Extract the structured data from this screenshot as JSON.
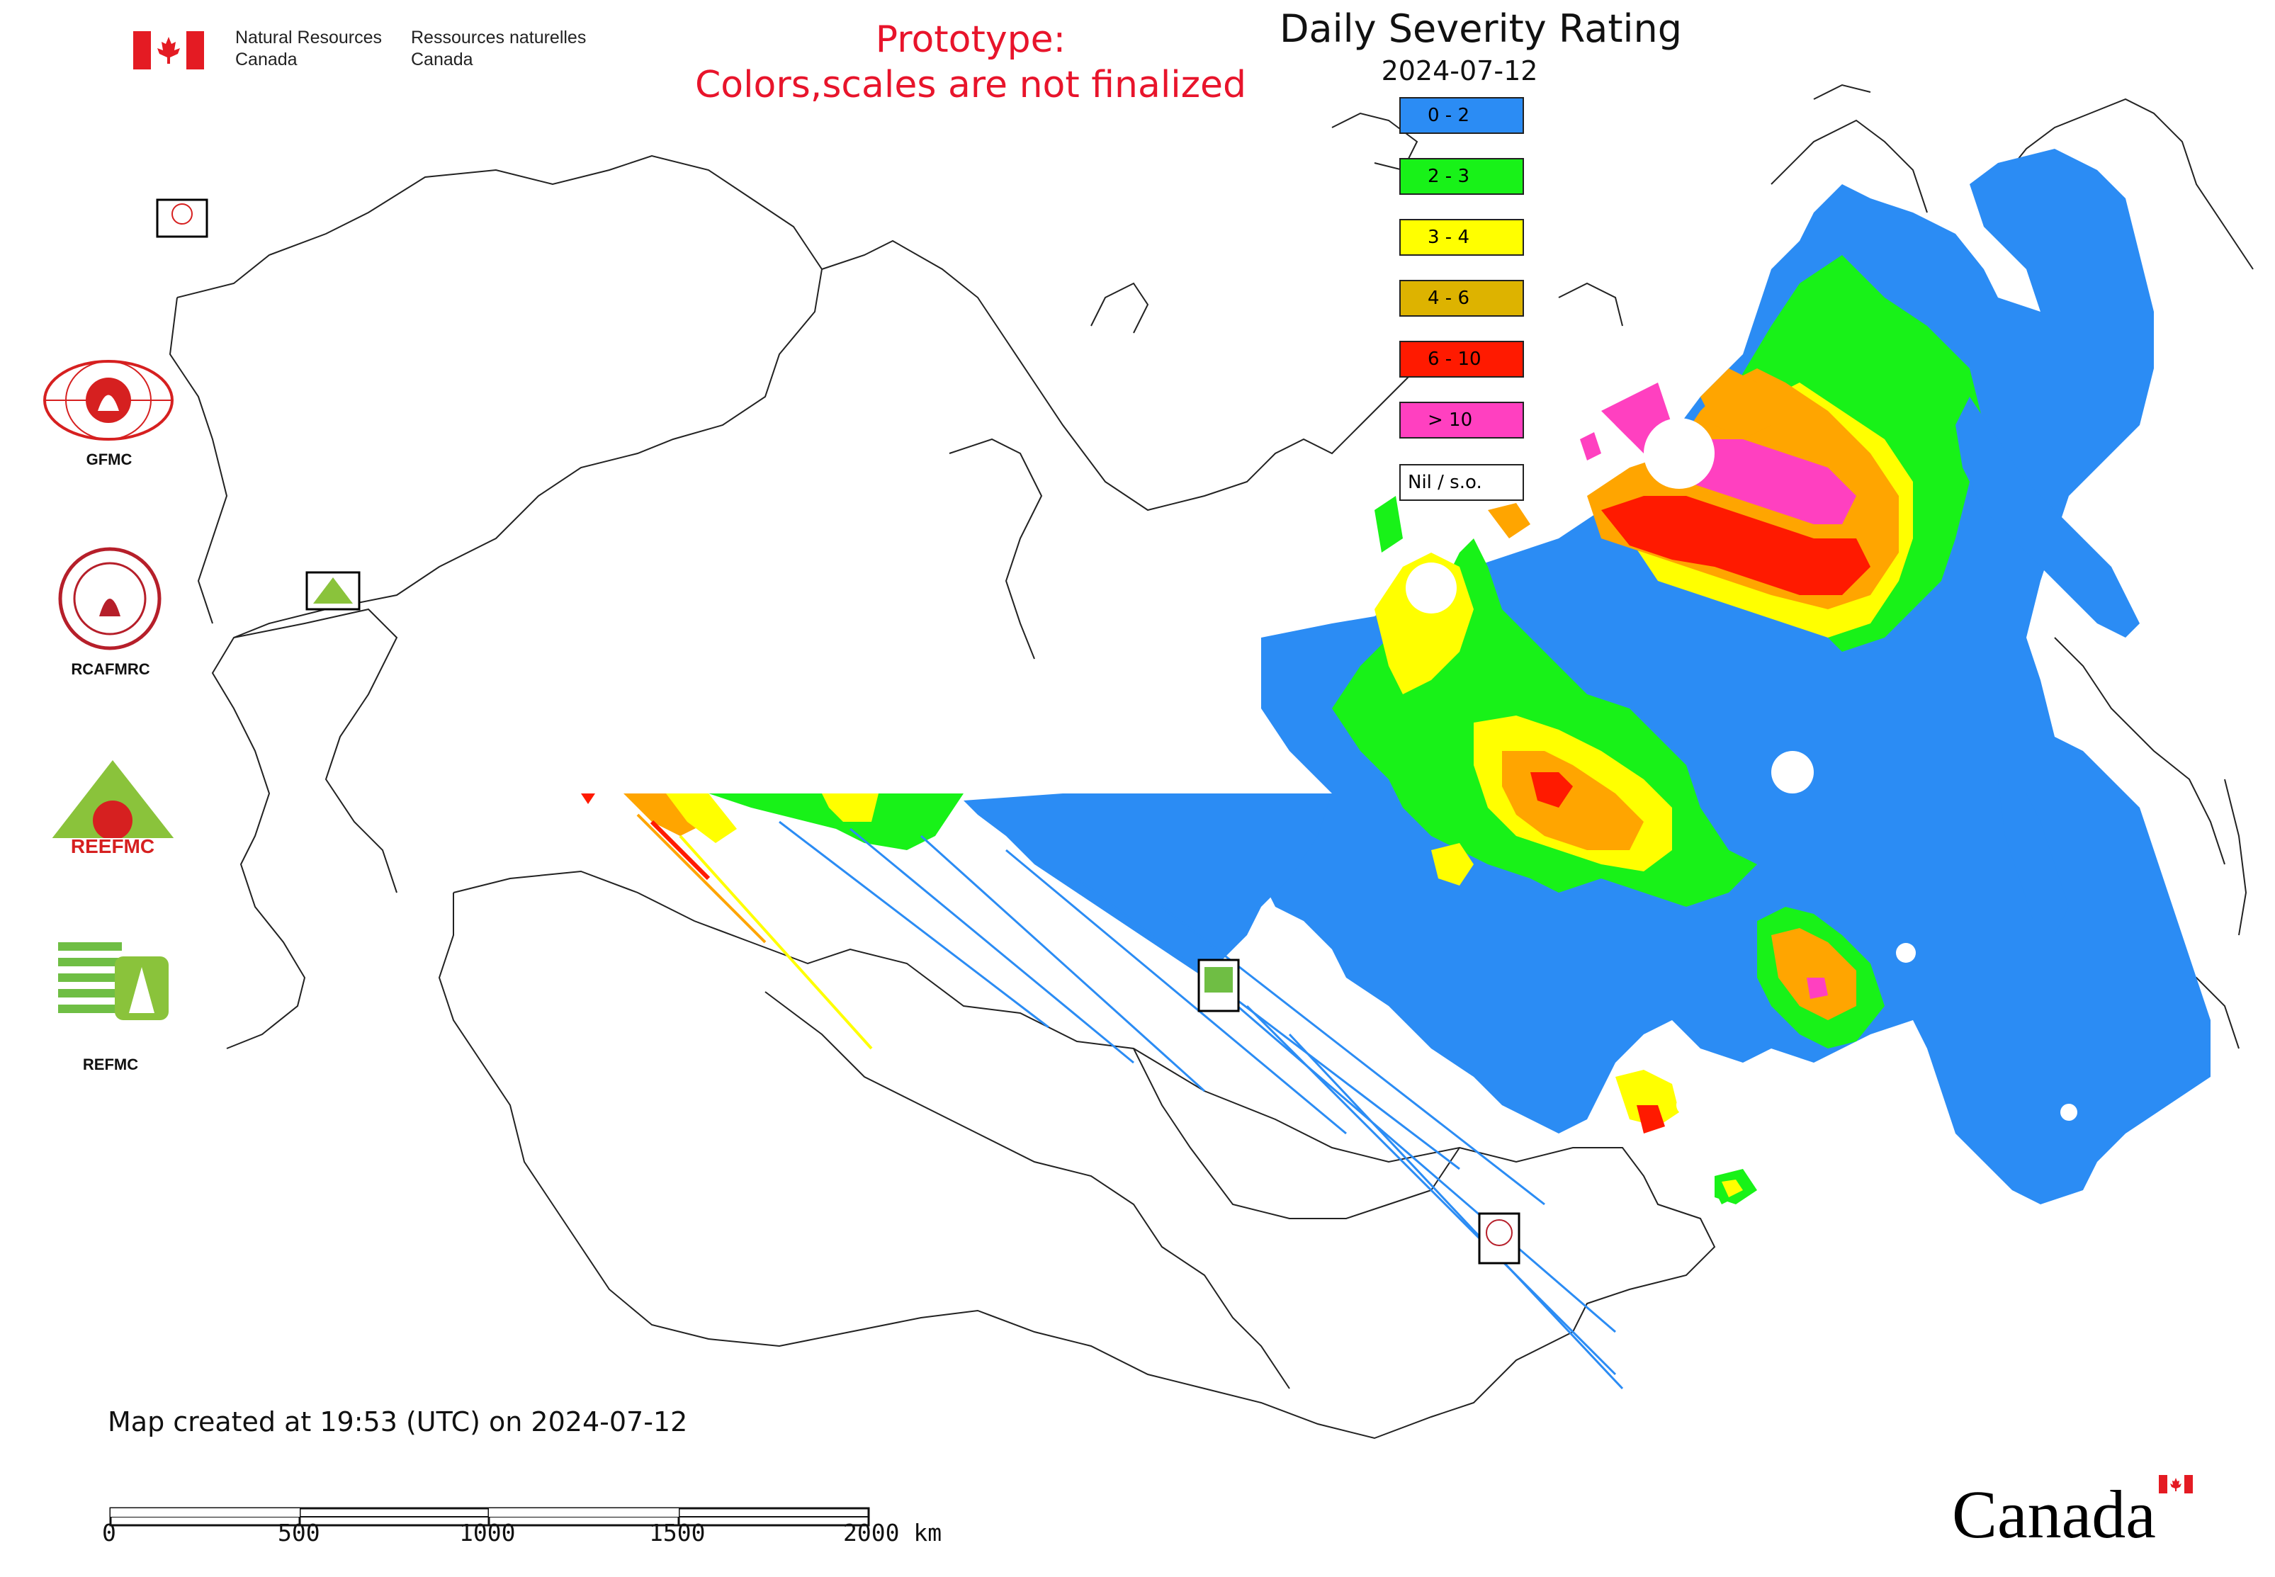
{
  "header": {
    "nrcan_en_line1": "Natural Resources",
    "nrcan_en_line2": "Canada",
    "nrcan_fr_line1": "Ressources naturelles",
    "nrcan_fr_line2": "Canada",
    "prototype_line1": "Prototype:",
    "prototype_line2": "Colors,scales are not finalized"
  },
  "title": "Daily Severity Rating",
  "date": "2024-07-12",
  "legend": [
    {
      "label": "0 - 2",
      "color": "#2b8cf4"
    },
    {
      "label": "2 - 3",
      "color": "#18f218"
    },
    {
      "label": "3 - 4",
      "color": "#ffff00"
    },
    {
      "label": "4 - 6",
      "color": "#ddb300"
    },
    {
      "label": "6 - 10",
      "color": "#ff1a00"
    },
    {
      "label": "> 10",
      "color": "#ff40c0"
    },
    {
      "label": "Nil / s.o.",
      "color": "#ffffff"
    }
  ],
  "logos": [
    {
      "name": "GFMC"
    },
    {
      "name": "RCAFMRC"
    },
    {
      "name": "REEFMC"
    },
    {
      "name": "REFMC"
    }
  ],
  "footer": {
    "created": "Map created at 19:53 (UTC) on 2024-07-12",
    "scale_labels": [
      "0",
      "500",
      "1000",
      "1500",
      "2000 km"
    ],
    "wordmark": "Canada"
  }
}
